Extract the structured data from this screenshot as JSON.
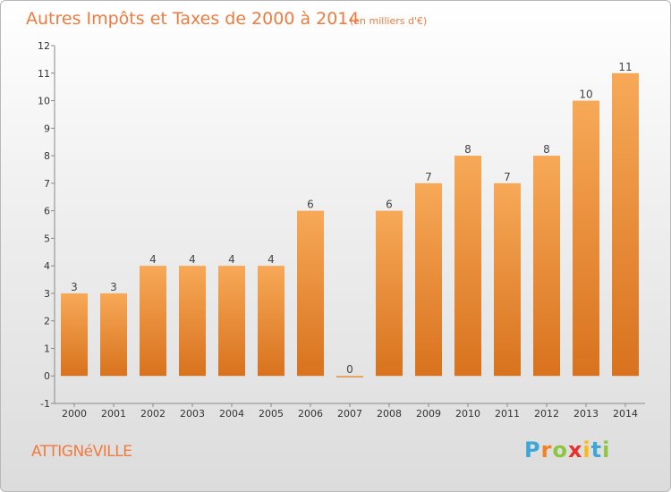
{
  "chart_data": {
    "type": "bar",
    "title": "Autres Impôts et Taxes de 2000 à 2014",
    "subtitle": "(en milliers d'€)",
    "categories": [
      "2000",
      "2001",
      "2002",
      "2003",
      "2004",
      "2005",
      "2006",
      "2007",
      "2008",
      "2009",
      "2010",
      "2011",
      "2012",
      "2013",
      "2014"
    ],
    "values": [
      3,
      3,
      4,
      4,
      4,
      4,
      6,
      0,
      6,
      7,
      8,
      7,
      8,
      10,
      11
    ],
    "ylim": [
      -1,
      12
    ],
    "yticks": [
      "-1",
      "0",
      "1",
      "2",
      "3",
      "4",
      "5",
      "6",
      "7",
      "8",
      "9",
      "10",
      "11",
      "12"
    ],
    "grid": false,
    "colors": {
      "bar_light": "#f7a957",
      "bar_dark": "#d8721e",
      "title": "#f07b3f"
    }
  },
  "footer": {
    "commune": "ATTIGNéVILLE",
    "logo_letters": [
      "P",
      "r",
      "o",
      "x",
      "i",
      "t",
      "i"
    ],
    "logo_colors": [
      "#3fa7d6",
      "#f58220",
      "#8dc63f",
      "#e6322b",
      "#fdb913",
      "#3fa7d6",
      "#8dc63f"
    ]
  }
}
